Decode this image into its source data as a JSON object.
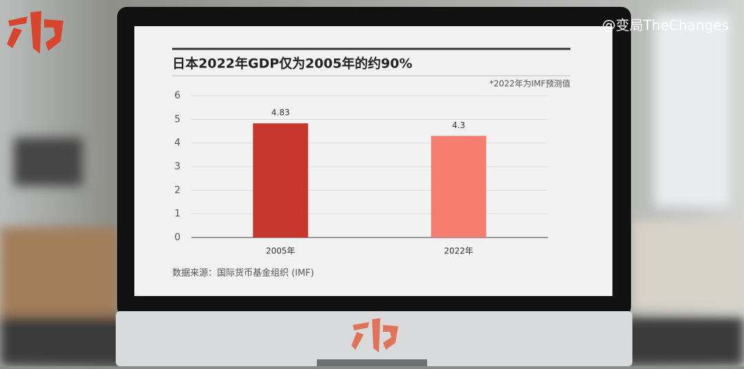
{
  "watermark": "@变局TheChanges",
  "chart_data": {
    "type": "bar",
    "title": "日本2022年GDP仅为2005年的约90%",
    "note": "*2022年为IMF预测值",
    "source": "数据来源：国际货币基金组织 (IMF)",
    "categories": [
      "2005年",
      "2022年"
    ],
    "values": [
      4.83,
      4.3
    ],
    "colors": [
      "#c8372d",
      "#f47d6f"
    ],
    "ylim": [
      0,
      6
    ],
    "yticks": [
      0,
      1,
      2,
      3,
      4,
      5,
      6
    ],
    "grid": true
  }
}
